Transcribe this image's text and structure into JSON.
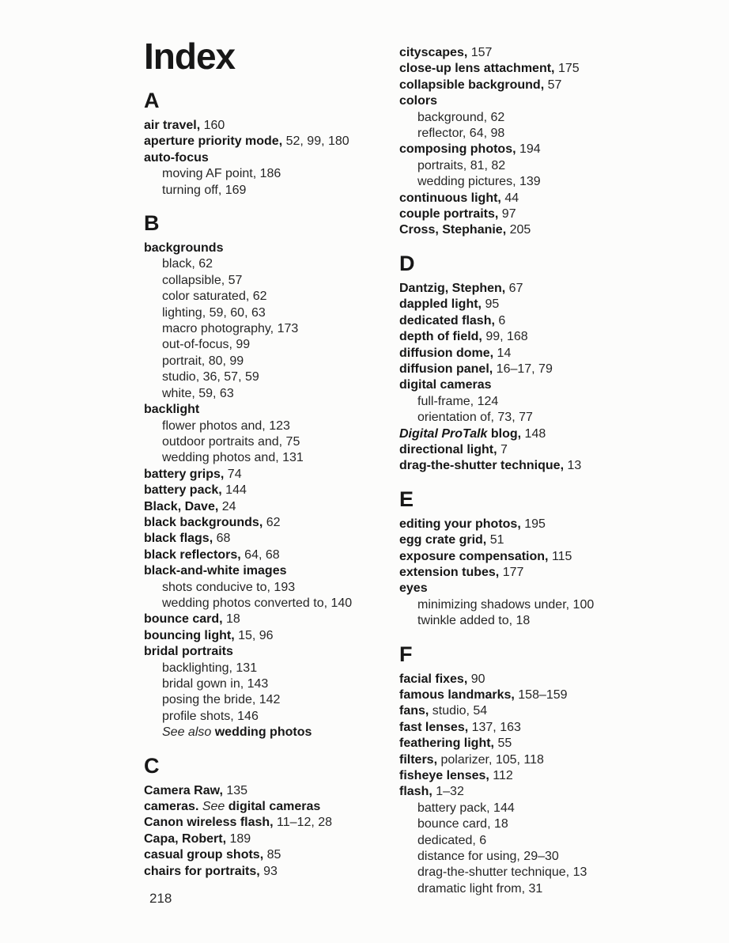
{
  "document": {
    "title": "Index",
    "page_number": "218"
  },
  "left_column": [
    {
      "k": "h",
      "t": "A"
    },
    {
      "k": "e",
      "l": 0,
      "p": [
        [
          "b",
          "air travel,"
        ],
        [
          "r",
          " 160"
        ]
      ]
    },
    {
      "k": "e",
      "l": 0,
      "p": [
        [
          "b",
          "aperture priority mode,"
        ],
        [
          "r",
          " 52, 99, 180"
        ]
      ]
    },
    {
      "k": "e",
      "l": 0,
      "p": [
        [
          "b",
          "auto-focus"
        ]
      ]
    },
    {
      "k": "e",
      "l": 1,
      "p": [
        [
          "r",
          "moving AF point, 186"
        ]
      ]
    },
    {
      "k": "e",
      "l": 1,
      "p": [
        [
          "r",
          "turning off, 169"
        ]
      ]
    },
    {
      "k": "h",
      "t": "B"
    },
    {
      "k": "e",
      "l": 0,
      "p": [
        [
          "b",
          "backgrounds"
        ]
      ]
    },
    {
      "k": "e",
      "l": 1,
      "p": [
        [
          "r",
          "black, 62"
        ]
      ]
    },
    {
      "k": "e",
      "l": 1,
      "p": [
        [
          "r",
          "collapsible, 57"
        ]
      ]
    },
    {
      "k": "e",
      "l": 1,
      "p": [
        [
          "r",
          "color saturated, 62"
        ]
      ]
    },
    {
      "k": "e",
      "l": 1,
      "p": [
        [
          "r",
          "lighting, 59, 60, 63"
        ]
      ]
    },
    {
      "k": "e",
      "l": 1,
      "p": [
        [
          "r",
          "macro photography, 173"
        ]
      ]
    },
    {
      "k": "e",
      "l": 1,
      "p": [
        [
          "r",
          "out-of-focus, 99"
        ]
      ]
    },
    {
      "k": "e",
      "l": 1,
      "p": [
        [
          "r",
          "portrait, 80, 99"
        ]
      ]
    },
    {
      "k": "e",
      "l": 1,
      "p": [
        [
          "r",
          "studio, 36, 57, 59"
        ]
      ]
    },
    {
      "k": "e",
      "l": 1,
      "p": [
        [
          "r",
          "white, 59, 63"
        ]
      ]
    },
    {
      "k": "e",
      "l": 0,
      "p": [
        [
          "b",
          "backlight"
        ]
      ]
    },
    {
      "k": "e",
      "l": 1,
      "p": [
        [
          "r",
          "flower photos and, 123"
        ]
      ]
    },
    {
      "k": "e",
      "l": 1,
      "p": [
        [
          "r",
          "outdoor portraits and, 75"
        ]
      ]
    },
    {
      "k": "e",
      "l": 1,
      "p": [
        [
          "r",
          "wedding photos and, 131"
        ]
      ]
    },
    {
      "k": "e",
      "l": 0,
      "p": [
        [
          "b",
          "battery grips,"
        ],
        [
          "r",
          " 74"
        ]
      ]
    },
    {
      "k": "e",
      "l": 0,
      "p": [
        [
          "b",
          "battery pack,"
        ],
        [
          "r",
          " 144"
        ]
      ]
    },
    {
      "k": "e",
      "l": 0,
      "p": [
        [
          "b",
          "Black, Dave,"
        ],
        [
          "r",
          " 24"
        ]
      ]
    },
    {
      "k": "e",
      "l": 0,
      "p": [
        [
          "b",
          "black backgrounds,"
        ],
        [
          "r",
          " 62"
        ]
      ]
    },
    {
      "k": "e",
      "l": 0,
      "p": [
        [
          "b",
          "black flags,"
        ],
        [
          "r",
          " 68"
        ]
      ]
    },
    {
      "k": "e",
      "l": 0,
      "p": [
        [
          "b",
          "black reflectors,"
        ],
        [
          "r",
          " 64, 68"
        ]
      ]
    },
    {
      "k": "e",
      "l": 0,
      "p": [
        [
          "b",
          "black-and-white images"
        ]
      ]
    },
    {
      "k": "e",
      "l": 1,
      "p": [
        [
          "r",
          "shots conducive to, 193"
        ]
      ]
    },
    {
      "k": "e",
      "l": 1,
      "p": [
        [
          "r",
          "wedding photos converted to, 140"
        ]
      ]
    },
    {
      "k": "e",
      "l": 0,
      "p": [
        [
          "b",
          "bounce card,"
        ],
        [
          "r",
          " 18"
        ]
      ]
    },
    {
      "k": "e",
      "l": 0,
      "p": [
        [
          "b",
          "bouncing light,"
        ],
        [
          "r",
          " 15, 96"
        ]
      ]
    },
    {
      "k": "e",
      "l": 0,
      "p": [
        [
          "b",
          "bridal portraits"
        ]
      ]
    },
    {
      "k": "e",
      "l": 1,
      "p": [
        [
          "r",
          "backlighting, 131"
        ]
      ]
    },
    {
      "k": "e",
      "l": 1,
      "p": [
        [
          "r",
          "bridal gown in, 143"
        ]
      ]
    },
    {
      "k": "e",
      "l": 1,
      "p": [
        [
          "r",
          "posing the bride, 142"
        ]
      ]
    },
    {
      "k": "e",
      "l": 1,
      "p": [
        [
          "r",
          "profile shots, 146"
        ]
      ]
    },
    {
      "k": "e",
      "l": 1,
      "p": [
        [
          "i",
          "See also "
        ],
        [
          "b",
          "wedding photos"
        ]
      ]
    },
    {
      "k": "h",
      "t": "C"
    },
    {
      "k": "e",
      "l": 0,
      "p": [
        [
          "b",
          "Camera Raw,"
        ],
        [
          "r",
          " 135"
        ]
      ]
    },
    {
      "k": "e",
      "l": 0,
      "p": [
        [
          "b",
          "cameras. "
        ],
        [
          "i",
          "See "
        ],
        [
          "b",
          "digital cameras"
        ]
      ]
    },
    {
      "k": "e",
      "l": 0,
      "p": [
        [
          "b",
          "Canon wireless flash,"
        ],
        [
          "r",
          " 11–12, 28"
        ]
      ]
    },
    {
      "k": "e",
      "l": 0,
      "p": [
        [
          "b",
          "Capa, Robert,"
        ],
        [
          "r",
          " 189"
        ]
      ]
    },
    {
      "k": "e",
      "l": 0,
      "p": [
        [
          "b",
          "casual group shots,"
        ],
        [
          "r",
          " 85"
        ]
      ]
    },
    {
      "k": "e",
      "l": 0,
      "p": [
        [
          "b",
          "chairs for portraits,"
        ],
        [
          "r",
          " 93"
        ]
      ]
    }
  ],
  "right_column": [
    {
      "k": "e",
      "l": 0,
      "p": [
        [
          "b",
          "cityscapes,"
        ],
        [
          "r",
          " 157"
        ]
      ]
    },
    {
      "k": "e",
      "l": 0,
      "p": [
        [
          "b",
          "close-up lens attachment,"
        ],
        [
          "r",
          " 175"
        ]
      ]
    },
    {
      "k": "e",
      "l": 0,
      "p": [
        [
          "b",
          "collapsible background,"
        ],
        [
          "r",
          " 57"
        ]
      ]
    },
    {
      "k": "e",
      "l": 0,
      "p": [
        [
          "b",
          "colors"
        ]
      ]
    },
    {
      "k": "e",
      "l": 1,
      "p": [
        [
          "r",
          "background, 62"
        ]
      ]
    },
    {
      "k": "e",
      "l": 1,
      "p": [
        [
          "r",
          "reflector, 64, 98"
        ]
      ]
    },
    {
      "k": "e",
      "l": 0,
      "p": [
        [
          "b",
          "composing photos,"
        ],
        [
          "r",
          " 194"
        ]
      ]
    },
    {
      "k": "e",
      "l": 1,
      "p": [
        [
          "r",
          "portraits, 81, 82"
        ]
      ]
    },
    {
      "k": "e",
      "l": 1,
      "p": [
        [
          "r",
          "wedding pictures, 139"
        ]
      ]
    },
    {
      "k": "e",
      "l": 0,
      "p": [
        [
          "b",
          "continuous light,"
        ],
        [
          "r",
          " 44"
        ]
      ]
    },
    {
      "k": "e",
      "l": 0,
      "p": [
        [
          "b",
          "couple portraits,"
        ],
        [
          "r",
          " 97"
        ]
      ]
    },
    {
      "k": "e",
      "l": 0,
      "p": [
        [
          "b",
          "Cross, Stephanie,"
        ],
        [
          "r",
          " 205"
        ]
      ]
    },
    {
      "k": "h",
      "t": "D"
    },
    {
      "k": "e",
      "l": 0,
      "p": [
        [
          "b",
          "Dantzig, Stephen,"
        ],
        [
          "r",
          " 67"
        ]
      ]
    },
    {
      "k": "e",
      "l": 0,
      "p": [
        [
          "b",
          "dappled light,"
        ],
        [
          "r",
          " 95"
        ]
      ]
    },
    {
      "k": "e",
      "l": 0,
      "p": [
        [
          "b",
          "dedicated flash,"
        ],
        [
          "r",
          " 6"
        ]
      ]
    },
    {
      "k": "e",
      "l": 0,
      "p": [
        [
          "b",
          "depth of field,"
        ],
        [
          "r",
          " 99, 168"
        ]
      ]
    },
    {
      "k": "e",
      "l": 0,
      "p": [
        [
          "b",
          "diffusion dome,"
        ],
        [
          "r",
          " 14"
        ]
      ]
    },
    {
      "k": "e",
      "l": 0,
      "p": [
        [
          "b",
          "diffusion panel,"
        ],
        [
          "r",
          " 16–17, 79"
        ]
      ]
    },
    {
      "k": "e",
      "l": 0,
      "p": [
        [
          "b",
          "digital cameras"
        ]
      ]
    },
    {
      "k": "e",
      "l": 1,
      "p": [
        [
          "r",
          "full-frame, 124"
        ]
      ]
    },
    {
      "k": "e",
      "l": 1,
      "p": [
        [
          "r",
          "orientation of, 73, 77"
        ]
      ]
    },
    {
      "k": "e",
      "l": 0,
      "p": [
        [
          "bi",
          "Digital ProTalk "
        ],
        [
          "b",
          "blog,"
        ],
        [
          "r",
          " 148"
        ]
      ]
    },
    {
      "k": "e",
      "l": 0,
      "p": [
        [
          "b",
          "directional light,"
        ],
        [
          "r",
          " 7"
        ]
      ]
    },
    {
      "k": "e",
      "l": 0,
      "p": [
        [
          "b",
          "drag-the-shutter technique,"
        ],
        [
          "r",
          " 13"
        ]
      ]
    },
    {
      "k": "h",
      "t": "E"
    },
    {
      "k": "e",
      "l": 0,
      "p": [
        [
          "b",
          "editing your photos,"
        ],
        [
          "r",
          " 195"
        ]
      ]
    },
    {
      "k": "e",
      "l": 0,
      "p": [
        [
          "b",
          "egg crate grid,"
        ],
        [
          "r",
          " 51"
        ]
      ]
    },
    {
      "k": "e",
      "l": 0,
      "p": [
        [
          "b",
          "exposure compensation,"
        ],
        [
          "r",
          " 115"
        ]
      ]
    },
    {
      "k": "e",
      "l": 0,
      "p": [
        [
          "b",
          "extension tubes,"
        ],
        [
          "r",
          " 177"
        ]
      ]
    },
    {
      "k": "e",
      "l": 0,
      "p": [
        [
          "b",
          "eyes"
        ]
      ]
    },
    {
      "k": "e",
      "l": 1,
      "p": [
        [
          "r",
          "minimizing shadows under, 100"
        ]
      ]
    },
    {
      "k": "e",
      "l": 1,
      "p": [
        [
          "r",
          "twinkle added to, 18"
        ]
      ]
    },
    {
      "k": "h",
      "t": "F"
    },
    {
      "k": "e",
      "l": 0,
      "p": [
        [
          "b",
          "facial fixes,"
        ],
        [
          "r",
          " 90"
        ]
      ]
    },
    {
      "k": "e",
      "l": 0,
      "p": [
        [
          "b",
          "famous landmarks,"
        ],
        [
          "r",
          " 158–159"
        ]
      ]
    },
    {
      "k": "e",
      "l": 0,
      "p": [
        [
          "b",
          "fans,"
        ],
        [
          "r",
          " studio, 54"
        ]
      ]
    },
    {
      "k": "e",
      "l": 0,
      "p": [
        [
          "b",
          "fast lenses,"
        ],
        [
          "r",
          " 137, 163"
        ]
      ]
    },
    {
      "k": "e",
      "l": 0,
      "p": [
        [
          "b",
          "feathering light,"
        ],
        [
          "r",
          " 55"
        ]
      ]
    },
    {
      "k": "e",
      "l": 0,
      "p": [
        [
          "b",
          "filters,"
        ],
        [
          "r",
          " polarizer, 105, 118"
        ]
      ]
    },
    {
      "k": "e",
      "l": 0,
      "p": [
        [
          "b",
          "fisheye lenses,"
        ],
        [
          "r",
          " 112"
        ]
      ]
    },
    {
      "k": "e",
      "l": 0,
      "p": [
        [
          "b",
          "flash,"
        ],
        [
          "r",
          " 1–32"
        ]
      ]
    },
    {
      "k": "e",
      "l": 1,
      "p": [
        [
          "r",
          "battery pack, 144"
        ]
      ]
    },
    {
      "k": "e",
      "l": 1,
      "p": [
        [
          "r",
          "bounce card, 18"
        ]
      ]
    },
    {
      "k": "e",
      "l": 1,
      "p": [
        [
          "r",
          "dedicated, 6"
        ]
      ]
    },
    {
      "k": "e",
      "l": 1,
      "p": [
        [
          "r",
          "distance for using, 29–30"
        ]
      ]
    },
    {
      "k": "e",
      "l": 1,
      "p": [
        [
          "r",
          "drag-the-shutter technique, 13"
        ]
      ]
    },
    {
      "k": "e",
      "l": 1,
      "p": [
        [
          "r",
          "dramatic light from, 31"
        ]
      ]
    }
  ]
}
